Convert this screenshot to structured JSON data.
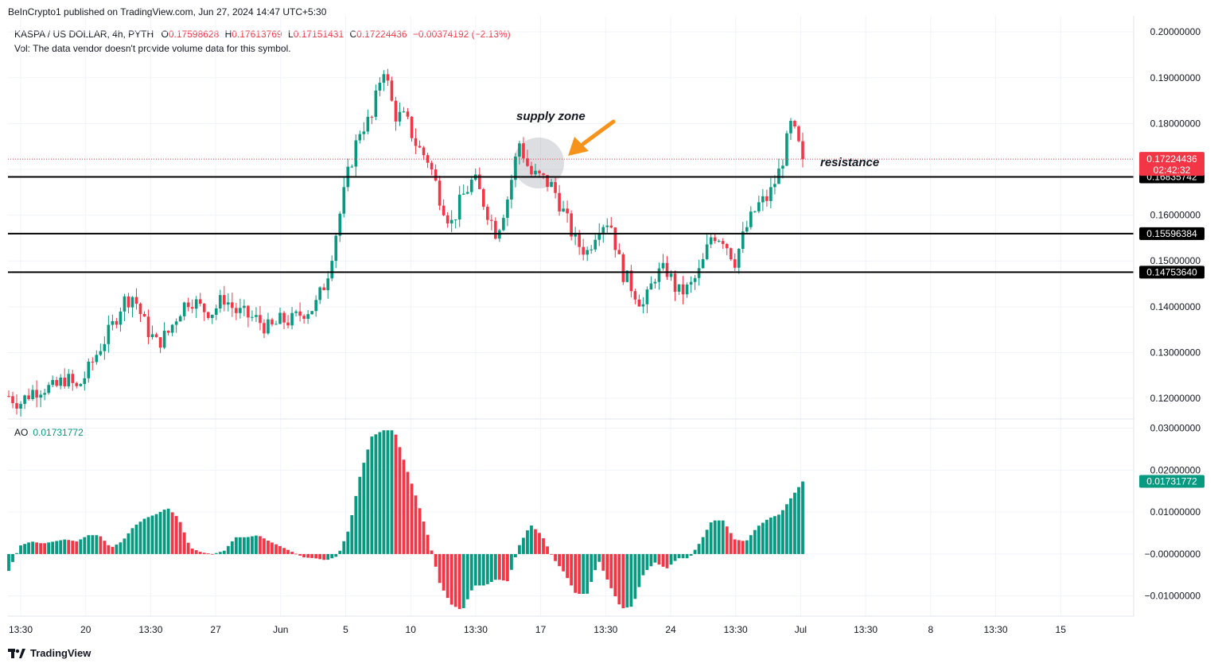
{
  "publisher": "BeInCrypto1 published on TradingView.com, Jun 27, 2024 14:47 UTC+5:30",
  "legend": {
    "symbol": "KASPA / US DOLLAR, 4h, PYTH",
    "o_label": "O",
    "o": "0.17598628",
    "h_label": "H",
    "h": "0.17613769",
    "l_label": "L",
    "l": "0.17151431",
    "c_label": "C",
    "c": "0.17224436",
    "change": "−0.00374192 (−2.13%)",
    "vol": "Vol: The data vendor doesn't provide volume data for this symbol."
  },
  "ao_legend": {
    "label": "AO",
    "value": "0.01731772"
  },
  "annotations": {
    "supply_zone": "supply zone",
    "resistance": "resistance"
  },
  "footer": {
    "brand": "TradingView"
  },
  "colors": {
    "up": "#089981",
    "down": "#f23645",
    "arrow": "#f7931a",
    "zone": "#b2b5be"
  },
  "chart_data": [
    {
      "type": "candlestick",
      "title": "KASPA / US DOLLAR, 4h, PYTH",
      "ylim": [
        0.1155,
        0.2035
      ],
      "y_ticks": [
        "0.20000000",
        "0.19000000",
        "0.18000000",
        "0.17000000",
        "0.16000000",
        "0.15000000",
        "0.14000000",
        "0.13000000",
        "0.12000000"
      ],
      "x_ticks": [
        "13:30",
        "20",
        "13:30",
        "27",
        "Jun",
        "5",
        "10",
        "13:30",
        "17",
        "13:30",
        "24",
        "13:30",
        "Jul",
        "13:30",
        "8",
        "13:30",
        "15"
      ],
      "current_price": "0.17224436",
      "countdown": "02:42:32",
      "levels": [
        {
          "value": 0.16835742,
          "label": "0.16835742"
        },
        {
          "value": 0.15596384,
          "label": "0.15596384"
        },
        {
          "value": 0.1475364,
          "label": "0.14753640"
        }
      ],
      "anchors": [
        0.1205,
        0.119,
        0.1215,
        0.1225,
        0.122,
        0.1245,
        0.122,
        0.126,
        0.131,
        0.135,
        0.141,
        0.1425,
        0.136,
        0.132,
        0.134,
        0.139,
        0.142,
        0.1395,
        0.139,
        0.142,
        0.139,
        0.138,
        0.137,
        0.135,
        0.137,
        0.137,
        0.139,
        0.14,
        0.146,
        0.158,
        0.17,
        0.179,
        0.181,
        0.193,
        0.182,
        0.181,
        0.175,
        0.172,
        0.164,
        0.158,
        0.164,
        0.168,
        0.162,
        0.156,
        0.164,
        0.176,
        0.169,
        0.168,
        0.166,
        0.16,
        0.154,
        0.152,
        0.158,
        0.159,
        0.148,
        0.144,
        0.14,
        0.147,
        0.148,
        0.143,
        0.144,
        0.148,
        0.156,
        0.155,
        0.15,
        0.157,
        0.162,
        0.164,
        0.17,
        0.18,
        0.1722
      ]
    },
    {
      "type": "bar",
      "title": "AO",
      "ylim": [
        -0.0148,
        0.0322
      ],
      "y_ticks": [
        "0.03000000",
        "0.02000000",
        "0.01000000",
        "−0.00000000",
        "−0.01000000"
      ],
      "current_value": "0.01731772",
      "anchors": [
        -0.004,
        0.002,
        0.003,
        0.0025,
        0.003,
        0.0035,
        0.003,
        0.0045,
        0.0045,
        0.0015,
        0.003,
        0.0065,
        0.0085,
        0.0095,
        0.011,
        0.0085,
        0.0015,
        0.0004,
        0.0,
        0.0008,
        0.004,
        0.004,
        0.0045,
        0.003,
        0.0018,
        0.0005,
        -0.0008,
        -0.001,
        -0.0015,
        -0.0005,
        0.006,
        0.019,
        0.028,
        0.0295,
        0.0295,
        0.021,
        0.013,
        0.004,
        -0.007,
        -0.012,
        -0.0135,
        -0.0075,
        -0.0075,
        -0.006,
        -0.0065,
        0.002,
        0.007,
        0.0045,
        -0.001,
        -0.0045,
        -0.0095,
        -0.0095,
        -0.0015,
        -0.0075,
        -0.013,
        -0.0125,
        -0.0045,
        -0.002,
        -0.0035,
        -0.001,
        -0.001,
        0.003,
        0.008,
        0.008,
        0.0035,
        0.003,
        0.0065,
        0.0085,
        0.0095,
        0.0135,
        0.0173
      ]
    }
  ]
}
